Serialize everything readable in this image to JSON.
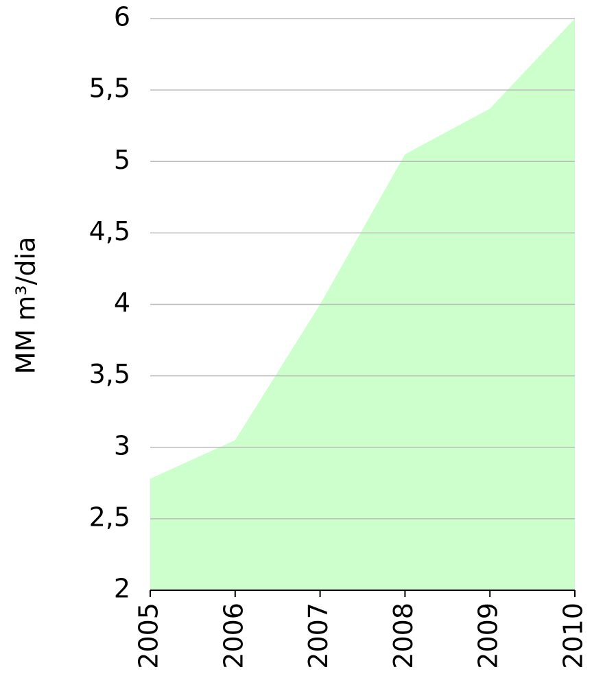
{
  "chart_data": {
    "type": "area",
    "y_label": "MM m³/dia",
    "x": [
      2005,
      2006,
      2007,
      2008,
      2009,
      2010
    ],
    "values": [
      2.78,
      3.05,
      4.0,
      5.05,
      5.37,
      6.0
    ],
    "color": "#ccffcc",
    "xlim": [
      2005,
      2010
    ],
    "xticks": [
      2005,
      2006,
      2007,
      2008,
      2009,
      2010
    ],
    "ylim": [
      2,
      6
    ],
    "yticks": [
      2,
      {
        "value": 2.5,
        "label": "2,5"
      },
      3,
      {
        "value": 3.5,
        "label": "3,5"
      },
      4,
      {
        "value": 4.5,
        "label": "4,5"
      },
      5,
      {
        "value": 5.5,
        "label": "5,5"
      },
      6
    ],
    "grid": true
  }
}
